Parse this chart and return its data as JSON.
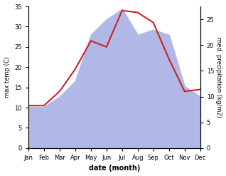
{
  "months": [
    "Jan",
    "Feb",
    "Mar",
    "Apr",
    "May",
    "Jun",
    "Jul",
    "Aug",
    "Sep",
    "Oct",
    "Nov",
    "Dec"
  ],
  "temp": [
    10.5,
    10.5,
    14.0,
    19.5,
    26.5,
    25.0,
    34.0,
    33.5,
    31.0,
    22.0,
    14.0,
    14.5
  ],
  "precip": [
    8,
    8,
    10,
    13,
    22,
    25,
    27,
    22,
    23,
    22,
    12,
    10
  ],
  "temp_color": "#cc2222",
  "precip_color": "#b0b8e8",
  "temp_ylim": [
    0,
    35
  ],
  "precip_ylim": [
    0,
    27.5
  ],
  "temp_ylabel": "max temp (C)",
  "precip_ylabel": "med. precipitation (kg/m2)",
  "xlabel": "date (month)",
  "temp_yticks": [
    0,
    5,
    10,
    15,
    20,
    25,
    30,
    35
  ],
  "precip_yticks": [
    0,
    5,
    10,
    15,
    20,
    25
  ],
  "bg_color": "#ffffff"
}
